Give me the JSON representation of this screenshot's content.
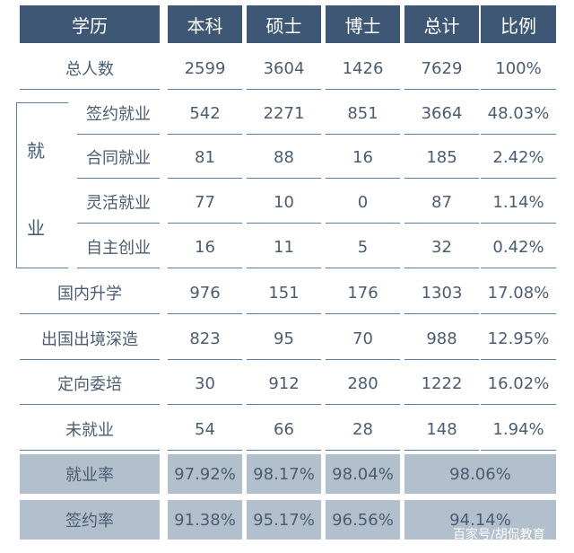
{
  "header": [
    "学历",
    "本科",
    "硕士",
    "博士",
    "总计",
    "比例"
  ],
  "rows": [
    {
      "label": "总人数",
      "values": [
        "2599",
        "3604",
        "1426",
        "7629",
        "100%"
      ]
    },
    {
      "label": "签约就业",
      "values": [
        "542",
        "2271",
        "851",
        "3664",
        "48.03%"
      ]
    },
    {
      "label": "合同就业",
      "values": [
        "81",
        "88",
        "16",
        "185",
        "2.42%"
      ]
    },
    {
      "label": "灵活就业",
      "values": [
        "77",
        "10",
        "0",
        "87",
        "1.14%"
      ]
    },
    {
      "label": "自主创业",
      "values": [
        "16",
        "11",
        "5",
        "32",
        "0.42%"
      ]
    },
    {
      "label": "国内升学",
      "values": [
        "976",
        "151",
        "176",
        "1303",
        "17.08%"
      ]
    },
    {
      "label": "出国出境深造",
      "values": [
        "823",
        "95",
        "70",
        "988",
        "12.95%"
      ]
    },
    {
      "label": "定向委培",
      "values": [
        "30",
        "912",
        "280",
        "1222",
        "16.02%"
      ]
    },
    {
      "label": "未就业",
      "values": [
        "54",
        "66",
        "28",
        "148",
        "1.94%"
      ]
    }
  ],
  "group_label": [
    "就",
    "业"
  ],
  "summary": [
    {
      "label": "就业率",
      "values": [
        "97.92%",
        "98.17%",
        "98.04%"
      ],
      "total": "98.06%"
    },
    {
      "label": "签约率",
      "values": [
        "91.38%",
        "95.17%",
        "96.56%"
      ],
      "total": "94.14%"
    }
  ],
  "watermark": "百家号/胡侃教育",
  "colors": {
    "header_bg": "#3e5775",
    "summary_bg": "#b2bfcd",
    "rule": "#5b7fa3",
    "text": "#4a5c73"
  }
}
